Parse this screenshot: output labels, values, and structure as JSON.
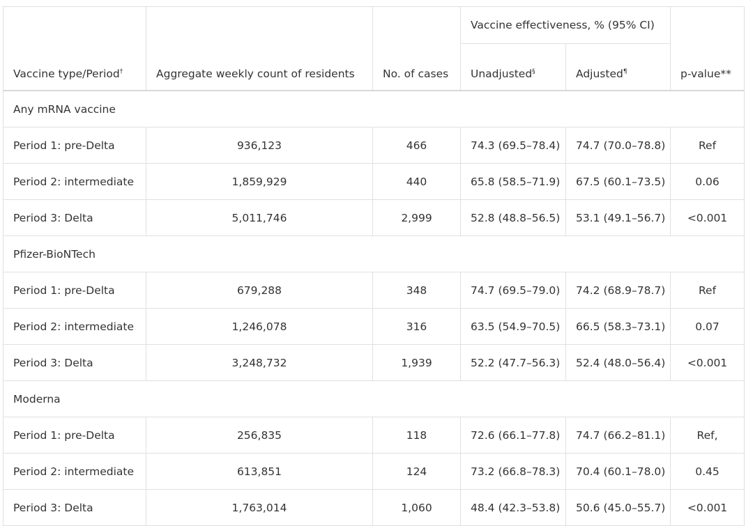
{
  "table": {
    "headers": {
      "vaccine_type": "Vaccine type/Period",
      "vaccine_type_sup": "†",
      "aggregate": "Aggregate weekly count of residents",
      "cases": "No. of cases",
      "ve_group": "Vaccine effectiveness, % (95% CI)",
      "unadjusted": "Unadjusted",
      "unadjusted_sup": "§",
      "adjusted": "Adjusted",
      "adjusted_sup": "¶",
      "pvalue": "p-value**"
    },
    "sections": [
      {
        "title": "Any mRNA vaccine",
        "rows": [
          {
            "period": "Period 1: pre-Delta",
            "count": "936,123",
            "cases": "466",
            "unadj": "74.3 (69.5–78.4)",
            "adj": "74.7 (70.0–78.8)",
            "p": "Ref"
          },
          {
            "period": "Period 2: intermediate",
            "count": "1,859,929",
            "cases": "440",
            "unadj": "65.8 (58.5–71.9)",
            "adj": "67.5 (60.1–73.5)",
            "p": "0.06"
          },
          {
            "period": "Period 3: Delta",
            "count": "5,011,746",
            "cases": "2,999",
            "unadj": "52.8 (48.8–56.5)",
            "adj": "53.1 (49.1–56.7)",
            "p": "<0.001"
          }
        ]
      },
      {
        "title": "Pfizer-BioNTech",
        "rows": [
          {
            "period": "Period 1: pre-Delta",
            "count": "679,288",
            "cases": "348",
            "unadj": "74.7 (69.5–79.0)",
            "adj": "74.2 (68.9–78.7)",
            "p": "Ref"
          },
          {
            "period": "Period 2: intermediate",
            "count": "1,246,078",
            "cases": "316",
            "unadj": "63.5 (54.9–70.5)",
            "adj": "66.5 (58.3–73.1)",
            "p": "0.07"
          },
          {
            "period": "Period 3: Delta",
            "count": "3,248,732",
            "cases": "1,939",
            "unadj": "52.2 (47.7–56.3)",
            "adj": "52.4 (48.0–56.4)",
            "p": "<0.001"
          }
        ]
      },
      {
        "title": "Moderna",
        "rows": [
          {
            "period": "Period 1: pre-Delta",
            "count": "256,835",
            "cases": "118",
            "unadj": "72.6 (66.1–77.8)",
            "adj": "74.7 (66.2–81.1)",
            "p": "Ref,"
          },
          {
            "period": "Period 2: intermediate",
            "count": "613,851",
            "cases": "124",
            "unadj": "73.2 (66.8–78.3)",
            "adj": "70.4 (60.1–78.0)",
            "p": "0.45"
          },
          {
            "period": "Period 3: Delta",
            "count": "1,763,014",
            "cases": "1,060",
            "unadj": "48.4 (42.3–53.8)",
            "adj": "50.6 (45.0–55.7)",
            "p": "<0.001"
          }
        ]
      }
    ]
  }
}
